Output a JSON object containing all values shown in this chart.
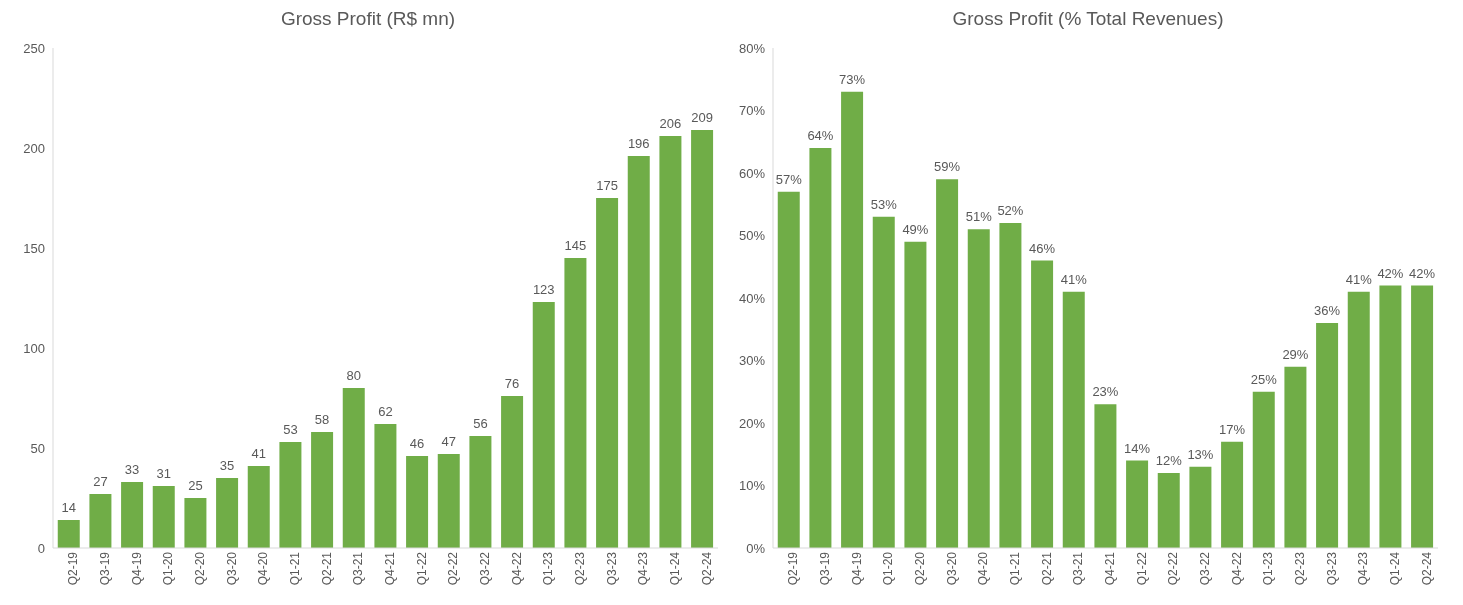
{
  "chart_data": [
    {
      "type": "bar",
      "title": "Gross Profit (R$ mn)",
      "categories": [
        "Q2-19",
        "Q3-19",
        "Q4-19",
        "Q1-20",
        "Q2-20",
        "Q3-20",
        "Q4-20",
        "Q1-21",
        "Q2-21",
        "Q3-21",
        "Q4-21",
        "Q1-22",
        "Q2-22",
        "Q3-22",
        "Q4-22",
        "Q1-23",
        "Q2-23",
        "Q3-23",
        "Q4-23",
        "Q1-24",
        "Q2-24"
      ],
      "values": [
        14,
        27,
        33,
        31,
        25,
        35,
        41,
        53,
        58,
        80,
        62,
        46,
        47,
        56,
        76,
        123,
        145,
        175,
        196,
        206,
        209
      ],
      "color": "#70ad47",
      "ylim": [
        0,
        250
      ],
      "yticks": [
        0,
        50,
        100,
        150,
        200,
        250
      ],
      "data_labels": true
    },
    {
      "type": "bar",
      "title": "Gross Profit (% Total Revenues)",
      "categories": [
        "Q2-19",
        "Q3-19",
        "Q4-19",
        "Q1-20",
        "Q2-20",
        "Q3-20",
        "Q4-20",
        "Q1-21",
        "Q2-21",
        "Q3-21",
        "Q4-21",
        "Q1-22",
        "Q2-22",
        "Q3-22",
        "Q4-22",
        "Q1-23",
        "Q2-23",
        "Q3-23",
        "Q4-23",
        "Q1-24",
        "Q2-24"
      ],
      "values": [
        57,
        64,
        73,
        53,
        49,
        59,
        51,
        52,
        46,
        41,
        23,
        14,
        12,
        13,
        17,
        25,
        29,
        36,
        41,
        42,
        42
      ],
      "value_labels": [
        "57%",
        "64%",
        "73%",
        "53%",
        "49%",
        "59%",
        "51%",
        "52%",
        "46%",
        "41%",
        "23%",
        "14%",
        "12%",
        "13%",
        "17%",
        "25%",
        "29%",
        "36%",
        "41%",
        "42%",
        "42%"
      ],
      "color": "#70ad47",
      "ylim": [
        0,
        80
      ],
      "yticks": [
        {
          "value": 0,
          "label": "0%"
        },
        {
          "value": 10,
          "label": "10%"
        },
        {
          "value": 20,
          "label": "20%"
        },
        {
          "value": 30,
          "label": "30%"
        },
        {
          "value": 40,
          "label": "40%"
        },
        {
          "value": 50,
          "label": "50%"
        },
        {
          "value": 60,
          "label": "60%"
        },
        {
          "value": 70,
          "label": "70%"
        },
        {
          "value": 80,
          "label": "80%"
        }
      ]
    }
  ]
}
